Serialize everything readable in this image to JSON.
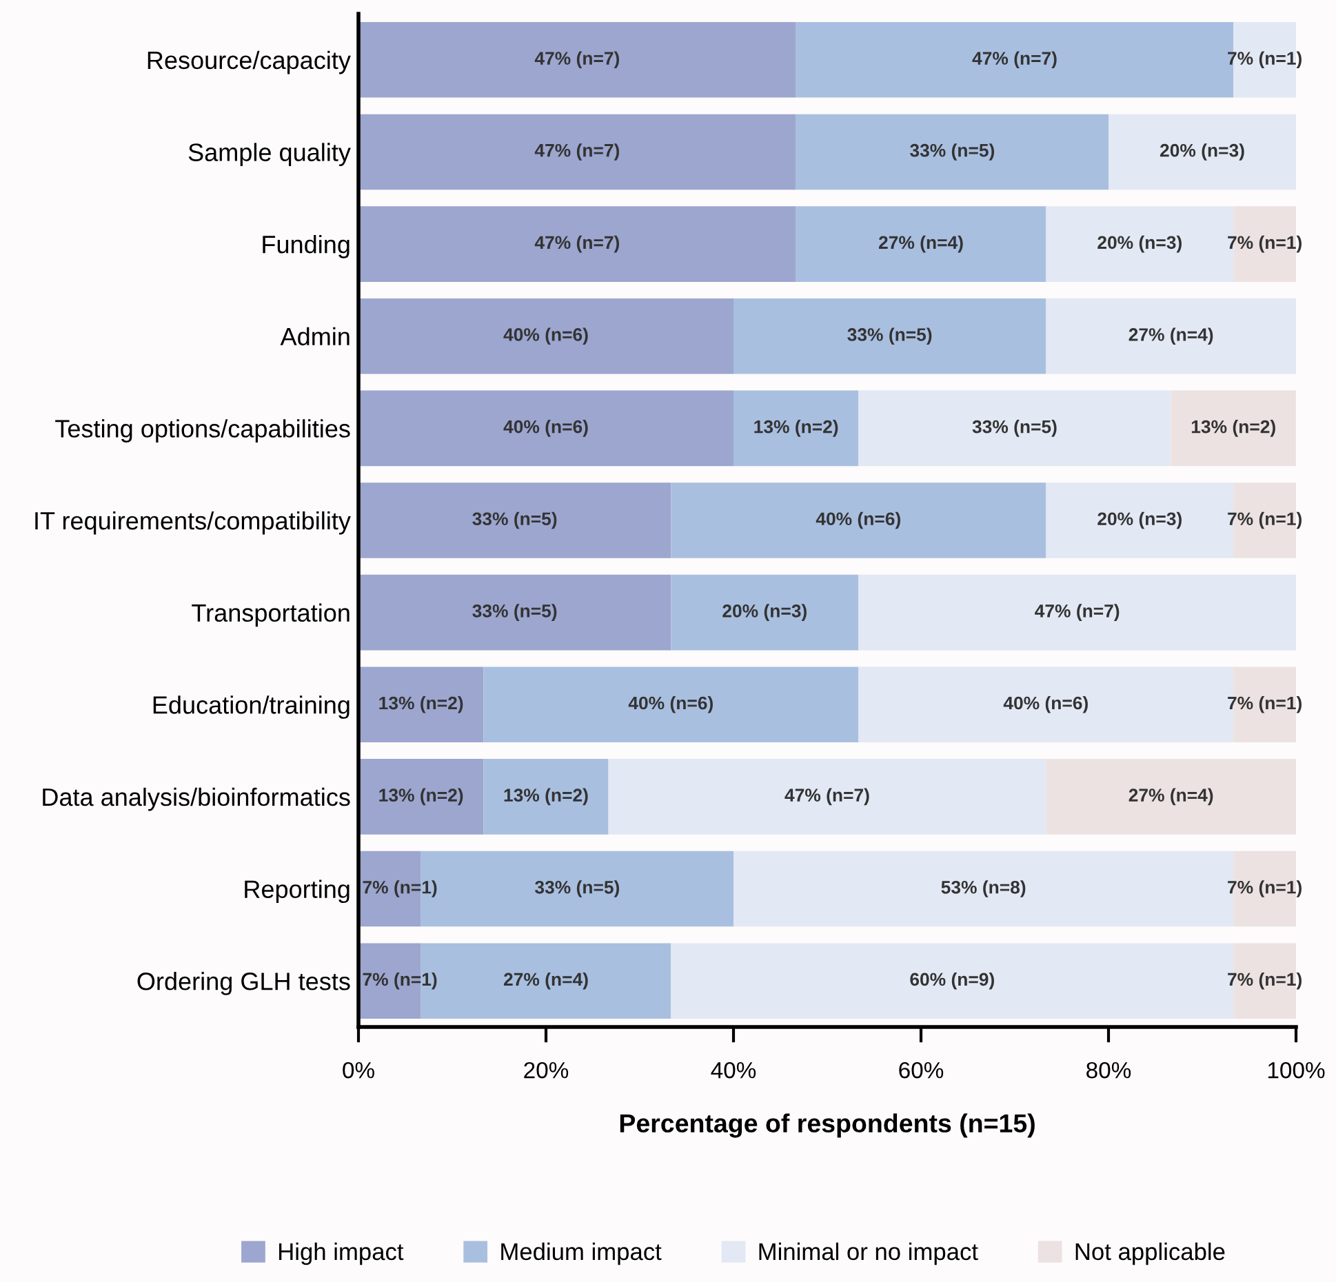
{
  "chart_data": {
    "type": "bar",
    "orientation": "horizontal",
    "stacked": true,
    "xlabel": "Percentage of respondents (n=15)",
    "categories": [
      "Resource/capacity",
      "Sample quality",
      "Funding",
      "Admin",
      "Testing options/capabilities",
      "IT requirements/compatibility",
      "Transportation",
      "Education/training",
      "Data analysis/bioinformatics",
      "Reporting",
      "Ordering GLH tests"
    ],
    "xlim": [
      0,
      100
    ],
    "xticks": [
      {
        "value": 0,
        "label": "0%"
      },
      {
        "value": 20,
        "label": "20%"
      },
      {
        "value": 40,
        "label": "40%"
      },
      {
        "value": 60,
        "label": "60%"
      },
      {
        "value": 80,
        "label": "80%"
      },
      {
        "value": 100,
        "label": "100%"
      }
    ],
    "grid": false,
    "legend": "bottom",
    "series": [
      {
        "name": "High impact",
        "color": "#9ca6cf",
        "values": [
          46.67,
          46.67,
          46.67,
          40,
          40,
          33.33,
          33.33,
          13.33,
          13.33,
          6.67,
          6.67
        ],
        "value_labels": [
          "47% (n=7)",
          "47% (n=7)",
          "47% (n=7)",
          "40% (n=6)",
          "40% (n=6)",
          "33% (n=5)",
          "33% (n=5)",
          "13% (n=2)",
          "13% (n=2)",
          "7% (n=1)",
          "7% (n=1)"
        ]
      },
      {
        "name": "Medium impact",
        "color": "#a9bfe0",
        "values": [
          46.66,
          33.33,
          26.66,
          33.33,
          13.33,
          40,
          20,
          40,
          13.33,
          33.33,
          26.66
        ],
        "value_labels": [
          "47% (n=7)",
          "33% (n=5)",
          "27% (n=4)",
          "33% (n=5)",
          "13% (n=2)",
          "40% (n=6)",
          "20% (n=3)",
          "40% (n=6)",
          "13% (n=2)",
          "33% (n=5)",
          "27% (n=4)"
        ]
      },
      {
        "name": "Minimal or no impact",
        "color": "#e2e8f4",
        "values": [
          6.67,
          20,
          20,
          26.67,
          33.33,
          20,
          46.67,
          40,
          46.67,
          53.33,
          60
        ],
        "value_labels": [
          "7% (n=1)",
          "20% (n=3)",
          "20% (n=3)",
          "27% (n=4)",
          "33% (n=5)",
          "20% (n=3)",
          "47% (n=7)",
          "40% (n=6)",
          "47% (n=7)",
          "53% (n=8)",
          "60% (n=9)"
        ]
      },
      {
        "name": "Not applicable",
        "color": "#ece2e2",
        "values": [
          0,
          0,
          6.67,
          0,
          13.33,
          6.67,
          0,
          6.67,
          26.67,
          6.67,
          6.67
        ],
        "value_labels": [
          null,
          null,
          "7% (n=1)",
          null,
          "13% (n=2)",
          "7% (n=1)",
          null,
          "7% (n=1)",
          "27% (n=4)",
          "7% (n=1)",
          "7% (n=1)"
        ]
      }
    ]
  }
}
